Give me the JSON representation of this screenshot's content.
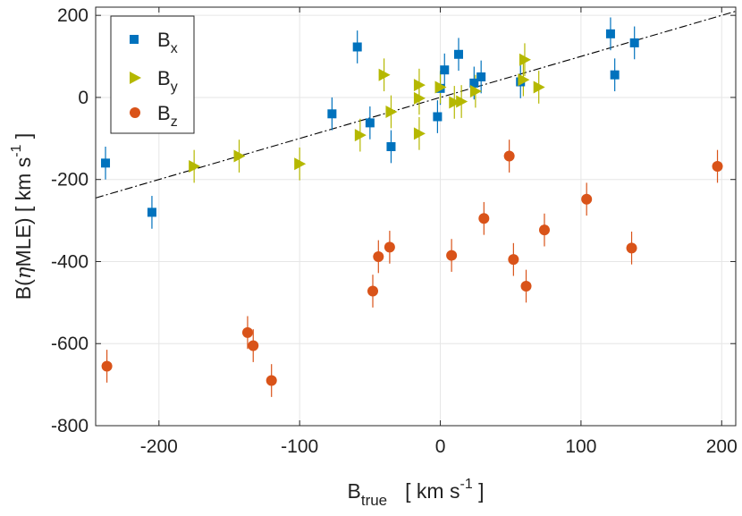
{
  "chart_data": {
    "type": "scatter",
    "title": "",
    "xlabel": {
      "main": "B",
      "sub": "true",
      "unit_pre": "[ km s",
      "unit_sup": "-1",
      "unit_post": " ]"
    },
    "ylabel": {
      "main": "B(",
      "greek": "η",
      "mid": "MLE)  [ km s",
      "unit_sup": "-1",
      "unit_post": " ]"
    },
    "xlim": [
      -245,
      210
    ],
    "ylim": [
      -800,
      220
    ],
    "xticks": [
      -200,
      -100,
      0,
      100,
      200
    ],
    "yticks": [
      200,
      0,
      -200,
      -400,
      -600,
      -800
    ],
    "grid": true,
    "legend_position": "top-left",
    "reference_line": {
      "style": "dash-dot",
      "color": "#000000",
      "slope": 1,
      "intercept": 0
    },
    "series": [
      {
        "name": "x",
        "label_main": "B",
        "label_sub": "x",
        "marker": "square",
        "color": "#0072BD",
        "points": [
          {
            "x": -238,
            "y": -160,
            "err": 40
          },
          {
            "x": -205,
            "y": -280,
            "err": 40
          },
          {
            "x": -77,
            "y": -40,
            "err": 40
          },
          {
            "x": -59,
            "y": 123,
            "err": 40
          },
          {
            "x": -50,
            "y": -62,
            "err": 40
          },
          {
            "x": -35,
            "y": -120,
            "err": 40
          },
          {
            "x": -2,
            "y": -47,
            "err": 40
          },
          {
            "x": 0,
            "y": 22,
            "err": 40
          },
          {
            "x": 3,
            "y": 67,
            "err": 40
          },
          {
            "x": 13,
            "y": 105,
            "err": 40
          },
          {
            "x": 24,
            "y": 35,
            "err": 40
          },
          {
            "x": 29,
            "y": 50,
            "err": 40
          },
          {
            "x": 57,
            "y": 38,
            "err": 40
          },
          {
            "x": 121,
            "y": 155,
            "err": 40
          },
          {
            "x": 124,
            "y": 55,
            "err": 40
          },
          {
            "x": 138,
            "y": 133,
            "err": 40
          }
        ]
      },
      {
        "name": "y",
        "label_main": "B",
        "label_sub": "y",
        "marker": "triangle-right",
        "color": "#B5B800",
        "points": [
          {
            "x": -175,
            "y": -168,
            "err": 40
          },
          {
            "x": -143,
            "y": -143,
            "err": 40
          },
          {
            "x": -100,
            "y": -162,
            "err": 40
          },
          {
            "x": -57,
            "y": -92,
            "err": 40
          },
          {
            "x": -40,
            "y": 55,
            "err": 40
          },
          {
            "x": -35,
            "y": -35,
            "err": 40
          },
          {
            "x": -15,
            "y": -88,
            "err": 40
          },
          {
            "x": -15,
            "y": 30,
            "err": 40
          },
          {
            "x": -15,
            "y": -2,
            "err": 40
          },
          {
            "x": 0,
            "y": 25,
            "err": 40
          },
          {
            "x": 10,
            "y": -12,
            "err": 40
          },
          {
            "x": 15,
            "y": -10,
            "err": 40
          },
          {
            "x": 25,
            "y": 15,
            "err": 40
          },
          {
            "x": 60,
            "y": 92,
            "err": 40
          },
          {
            "x": 59,
            "y": 43,
            "err": 40
          },
          {
            "x": 70,
            "y": 25,
            "err": 40
          }
        ]
      },
      {
        "name": "z",
        "label_main": "B",
        "label_sub": "z",
        "marker": "circle",
        "color": "#D95319",
        "points": [
          {
            "x": -237,
            "y": -655,
            "err": 40
          },
          {
            "x": -137,
            "y": -573,
            "err": 40
          },
          {
            "x": -133,
            "y": -605,
            "err": 40
          },
          {
            "x": -120,
            "y": -690,
            "err": 40
          },
          {
            "x": -48,
            "y": -472,
            "err": 40
          },
          {
            "x": -44,
            "y": -388,
            "err": 40
          },
          {
            "x": -36,
            "y": -365,
            "err": 40
          },
          {
            "x": 8,
            "y": -385,
            "err": 40
          },
          {
            "x": 31,
            "y": -295,
            "err": 40
          },
          {
            "x": 49,
            "y": -143,
            "err": 40
          },
          {
            "x": 52,
            "y": -395,
            "err": 40
          },
          {
            "x": 61,
            "y": -460,
            "err": 40
          },
          {
            "x": 74,
            "y": -323,
            "err": 40
          },
          {
            "x": 104,
            "y": -248,
            "err": 40
          },
          {
            "x": 136,
            "y": -367,
            "err": 40
          },
          {
            "x": 197,
            "y": -168,
            "err": 40
          }
        ]
      }
    ]
  }
}
